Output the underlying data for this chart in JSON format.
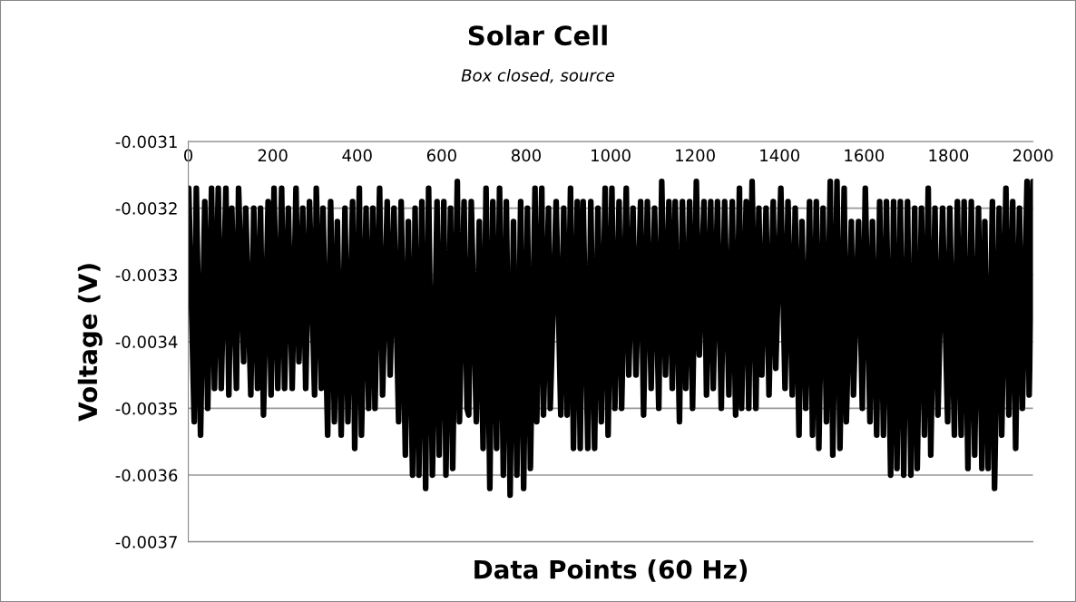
{
  "chart_data": {
    "type": "line",
    "title": "Solar Cell",
    "subtitle": "Box closed, source",
    "xlabel": "Data Points (60 Hz)",
    "ylabel": "Voltage (V)",
    "xlim": [
      0,
      2000
    ],
    "xticks": [
      0,
      200,
      400,
      600,
      800,
      1000,
      1200,
      1400,
      1600,
      1800,
      2000
    ],
    "ylim": [
      -0.0037,
      -0.0031
    ],
    "yticks": [
      -0.0037,
      -0.0036,
      -0.0035,
      -0.0034,
      -0.0033,
      -0.0032,
      -0.0031
    ],
    "grid": "y",
    "legend": false,
    "marker": "none",
    "line_style": "solid",
    "series": [
      {
        "color": "#000000",
        "x": [
          1,
          14,
          19,
          29,
          39,
          46,
          55,
          62,
          71,
          78,
          89,
          96,
          103,
          114,
          119,
          131,
          136,
          148,
          155,
          164,
          171,
          178,
          189,
          196,
          203,
          212,
          221,
          228,
          237,
          246,
          255,
          262,
          271,
          278,
          287,
          299,
          303,
          315,
          319,
          330,
          337,
          346,
          353,
          362,
          371,
          378,
          389,
          394,
          405,
          410,
          421,
          427,
          437,
          442,
          453,
          460,
          471,
          478,
          487,
          498,
          504,
          514,
          521,
          531,
          537,
          546,
          553,
          562,
          569,
          578,
          589,
          594,
          605,
          610,
          621,
          626,
          637,
          642,
          653,
          660,
          664,
          670,
          682,
          689,
          698,
          705,
          714,
          721,
          730,
          737,
          746,
          753,
          762,
          770,
          778,
          787,
          794,
          803,
          810,
          821,
          825,
          837,
          841,
          853,
          857,
          871,
          882,
          889,
          897,
          905,
          912,
          921,
          928,
          935,
          946,
          953,
          962,
          970,
          978,
          987,
          994,
          1003,
          1010,
          1020,
          1026,
          1037,
          1043,
          1053,
          1060,
          1071,
          1078,
          1087,
          1096,
          1104,
          1114,
          1121,
          1130,
          1138,
          1146,
          1153,
          1163,
          1170,
          1178,
          1187,
          1194,
          1203,
          1210,
          1221,
          1227,
          1237,
          1243,
          1253,
          1262,
          1270,
          1280,
          1288,
          1296,
          1305,
          1310,
          1321,
          1327,
          1335,
          1344,
          1351,
          1358,
          1368,
          1375,
          1385,
          1391,
          1403,
          1413,
          1420,
          1430,
          1437,
          1446,
          1453,
          1462,
          1471,
          1478,
          1487,
          1493,
          1503,
          1511,
          1520,
          1526,
          1536,
          1543,
          1553,
          1558,
          1570,
          1575,
          1587,
          1596,
          1603,
          1614,
          1620,
          1630,
          1637,
          1646,
          1653,
          1663,
          1670,
          1678,
          1686,
          1694,
          1703,
          1711,
          1720,
          1726,
          1736,
          1743,
          1752,
          1758,
          1768,
          1775,
          1786,
          1798,
          1803,
          1814,
          1821,
          1830,
          1837,
          1846,
          1854,
          1862,
          1871,
          1879,
          1886,
          1894,
          1904,
          1909,
          1920,
          1926,
          1936,
          1943,
          1952,
          1959,
          1968,
          1975,
          1986,
          1991,
          2000
        ],
        "values": [
          -0.00317,
          -0.00352,
          -0.00317,
          -0.00354,
          -0.00319,
          -0.0035,
          -0.00317,
          -0.00347,
          -0.00317,
          -0.00347,
          -0.00317,
          -0.00348,
          -0.0032,
          -0.00347,
          -0.00317,
          -0.00343,
          -0.0032,
          -0.00348,
          -0.0032,
          -0.00347,
          -0.0032,
          -0.00351,
          -0.00319,
          -0.00348,
          -0.00317,
          -0.00347,
          -0.00317,
          -0.00347,
          -0.0032,
          -0.00347,
          -0.00317,
          -0.00343,
          -0.0032,
          -0.00347,
          -0.00319,
          -0.00348,
          -0.00317,
          -0.00347,
          -0.0032,
          -0.00354,
          -0.00319,
          -0.00352,
          -0.00322,
          -0.00354,
          -0.0032,
          -0.00352,
          -0.00319,
          -0.00356,
          -0.00317,
          -0.00354,
          -0.0032,
          -0.0035,
          -0.0032,
          -0.0035,
          -0.00317,
          -0.00348,
          -0.00319,
          -0.00345,
          -0.0032,
          -0.00352,
          -0.00319,
          -0.00357,
          -0.00322,
          -0.0036,
          -0.0032,
          -0.0036,
          -0.00319,
          -0.00362,
          -0.00317,
          -0.0036,
          -0.00319,
          -0.00357,
          -0.00319,
          -0.0036,
          -0.0032,
          -0.00359,
          -0.00316,
          -0.00352,
          -0.00319,
          -0.0035,
          -0.00351,
          -0.00319,
          -0.00352,
          -0.00322,
          -0.00356,
          -0.00317,
          -0.00362,
          -0.00319,
          -0.00356,
          -0.00317,
          -0.0036,
          -0.00319,
          -0.00363,
          -0.00322,
          -0.0036,
          -0.00319,
          -0.00362,
          -0.0032,
          -0.00359,
          -0.00317,
          -0.00352,
          -0.00317,
          -0.00351,
          -0.0032,
          -0.0035,
          -0.00319,
          -0.00351,
          -0.0032,
          -0.00351,
          -0.00317,
          -0.00356,
          -0.00319,
          -0.00356,
          -0.00319,
          -0.00356,
          -0.00319,
          -0.00356,
          -0.0032,
          -0.00352,
          -0.00317,
          -0.00354,
          -0.00317,
          -0.0035,
          -0.00319,
          -0.0035,
          -0.00317,
          -0.00345,
          -0.0032,
          -0.00345,
          -0.00319,
          -0.00351,
          -0.00319,
          -0.00347,
          -0.0032,
          -0.0035,
          -0.00316,
          -0.00345,
          -0.00319,
          -0.00347,
          -0.00319,
          -0.00352,
          -0.00319,
          -0.00347,
          -0.00319,
          -0.0035,
          -0.00316,
          -0.00342,
          -0.00319,
          -0.00348,
          -0.00319,
          -0.00347,
          -0.00319,
          -0.0035,
          -0.00319,
          -0.00348,
          -0.00319,
          -0.00351,
          -0.00317,
          -0.0035,
          -0.00319,
          -0.0035,
          -0.00316,
          -0.0035,
          -0.0032,
          -0.00345,
          -0.0032,
          -0.00348,
          -0.00319,
          -0.00344,
          -0.00317,
          -0.00347,
          -0.00319,
          -0.00348,
          -0.0032,
          -0.00354,
          -0.00322,
          -0.0035,
          -0.00319,
          -0.00354,
          -0.00319,
          -0.00356,
          -0.0032,
          -0.00352,
          -0.00316,
          -0.00357,
          -0.00316,
          -0.00356,
          -0.00317,
          -0.00352,
          -0.00322,
          -0.00348,
          -0.00322,
          -0.0035,
          -0.00317,
          -0.00352,
          -0.00322,
          -0.00354,
          -0.00319,
          -0.00354,
          -0.00319,
          -0.0036,
          -0.00319,
          -0.00359,
          -0.00319,
          -0.0036,
          -0.00319,
          -0.0036,
          -0.0032,
          -0.00359,
          -0.0032,
          -0.00354,
          -0.00317,
          -0.00357,
          -0.0032,
          -0.00351,
          -0.0032,
          -0.00352,
          -0.0032,
          -0.00354,
          -0.00319,
          -0.00354,
          -0.00319,
          -0.00359,
          -0.00319,
          -0.00357,
          -0.0032,
          -0.00359,
          -0.00322,
          -0.00359,
          -0.00319,
          -0.00362,
          -0.0032,
          -0.00354,
          -0.00317,
          -0.00351,
          -0.00319,
          -0.00356,
          -0.0032,
          -0.0035,
          -0.00316,
          -0.00348,
          -0.00316
        ]
      }
    ]
  }
}
